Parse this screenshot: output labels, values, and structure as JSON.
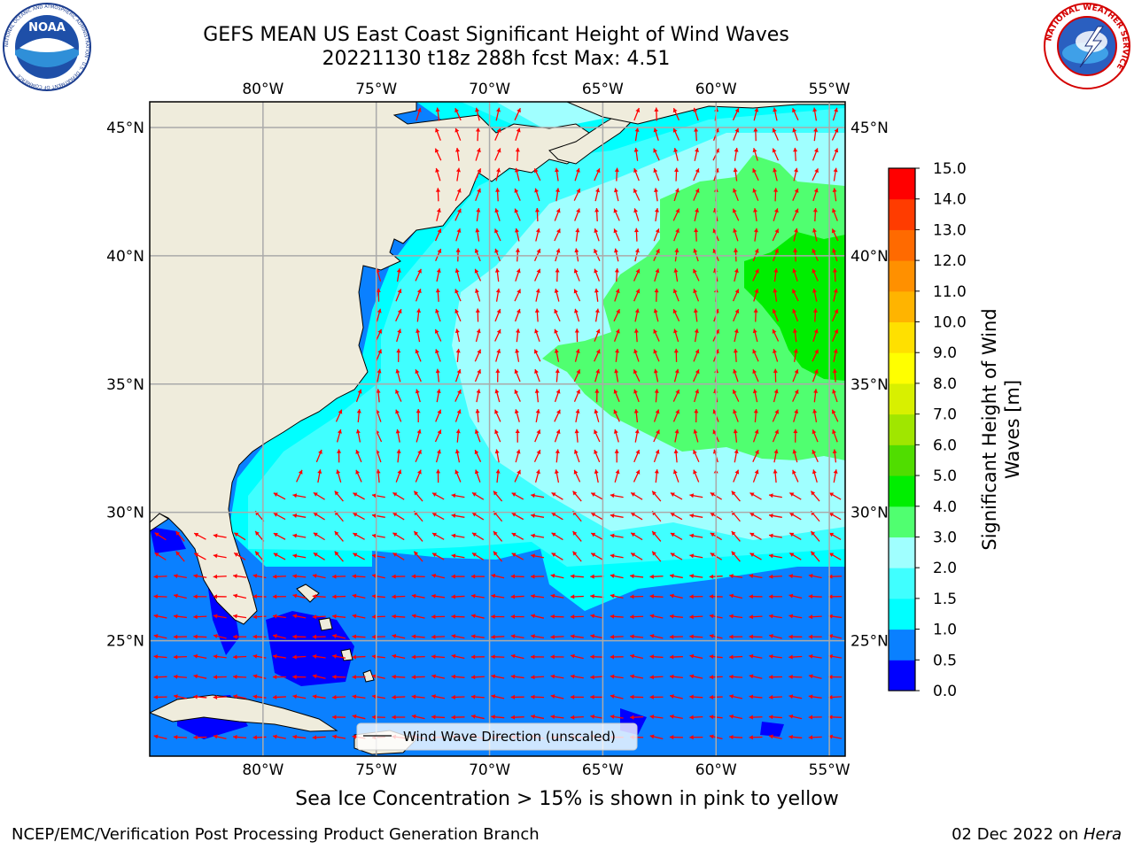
{
  "title": {
    "line1": "GEFS MEAN US East Coast Significant Height of Wind Waves",
    "line2": "20221130 t18z 288h fcst   Max: 4.51"
  },
  "logos": {
    "left": "NOAA",
    "left_ring_text": "NATIONAL OCEANIC AND ATMOSPHERIC ADMINISTRATION · U.S. DEPARTMENT OF COMMERCE",
    "right_ring_text": "NATIONAL WEATHER SERVICE"
  },
  "map": {
    "lon_labels": [
      "80°W",
      "75°W",
      "70°W",
      "65°W",
      "60°W",
      "55°W"
    ],
    "lat_labels": [
      "45°N",
      "40°N",
      "35°N",
      "30°N",
      "25°N"
    ],
    "lon_values": [
      -80,
      -75,
      -70,
      -65,
      -60,
      -55
    ],
    "lat_values": [
      45,
      40,
      35,
      30,
      25
    ],
    "extent": {
      "lon_min": -85,
      "lon_max": -54.3,
      "lat_min": 20.5,
      "lat_max": 46
    },
    "land_color": "#efecdc",
    "arrow_color": "#ff0000",
    "grid": true,
    "legend": {
      "label": "Wind Wave Direction (unscaled)",
      "placement": "bottom-center"
    }
  },
  "colorbar": {
    "label": "Significant Height of Wind Waves [m]",
    "label_line1": "Significant Height of Wind",
    "label_line2": "Waves [m]",
    "ticks": [
      "0.0",
      "0.5",
      "1.0",
      "1.5",
      "2.0",
      "3.0",
      "4.0",
      "5.0",
      "6.0",
      "7.0",
      "8.0",
      "9.0",
      "10.0",
      "11.0",
      "12.0",
      "13.0",
      "14.0",
      "15.0"
    ],
    "colors": [
      "#0000ff",
      "#0a80ff",
      "#00ffff",
      "#40ffff",
      "#a0ffff",
      "#50ff70",
      "#00ee00",
      "#50dd00",
      "#a0e600",
      "#d8f000",
      "#ffff00",
      "#ffe000",
      "#ffb400",
      "#ff9000",
      "#ff6a00",
      "#ff3c00",
      "#ff0000"
    ]
  },
  "notes": {
    "ice": "Sea Ice Concentration > 15% is shown in pink to yellow",
    "footer_left": "NCEP/EMC/Verification Post Processing Product Generation Branch",
    "footer_date": "02 Dec 2022 on ",
    "footer_host": "Hera"
  }
}
